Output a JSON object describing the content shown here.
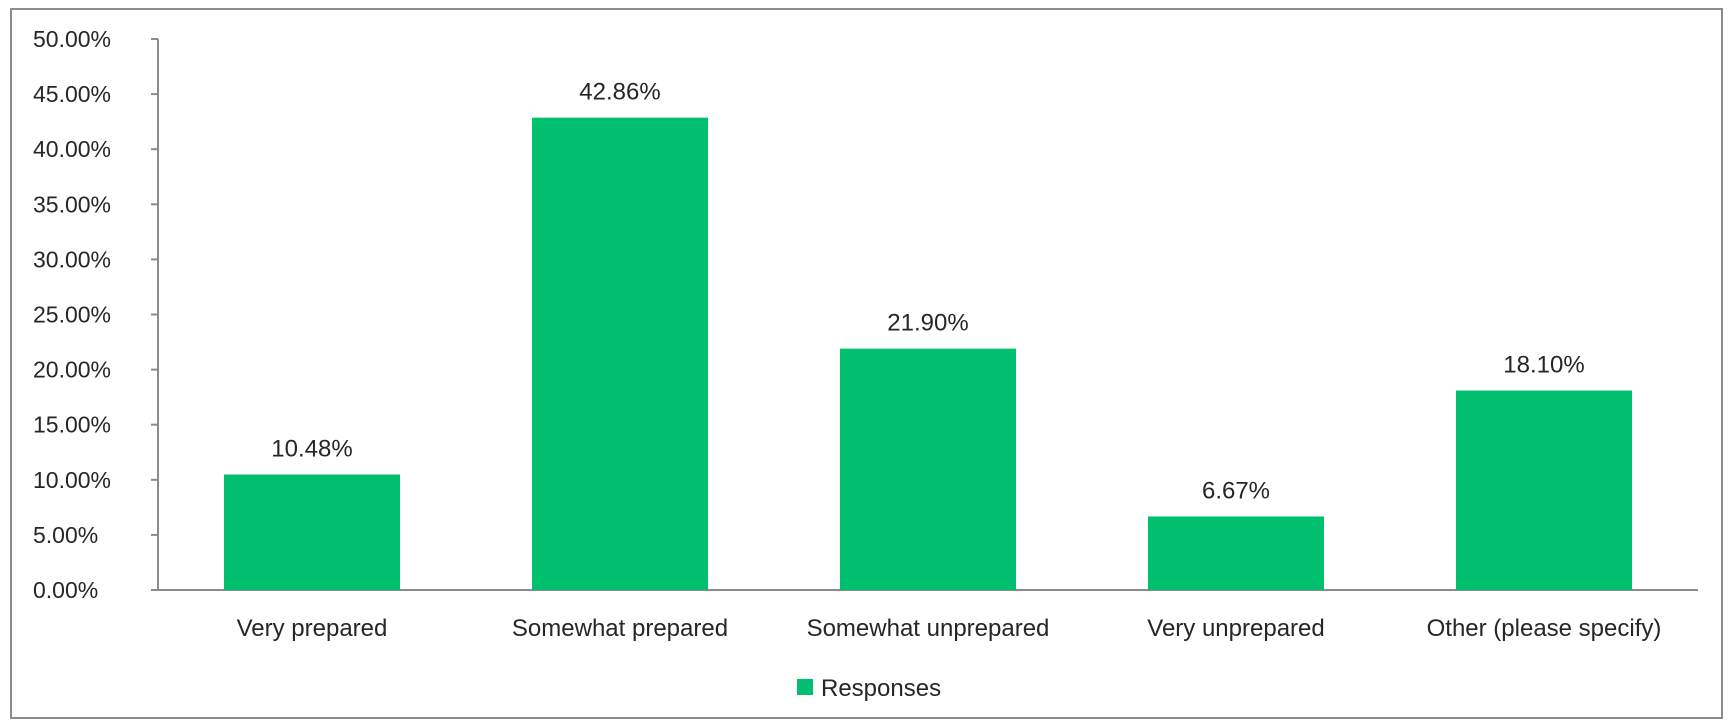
{
  "chart_data": {
    "type": "bar",
    "categories": [
      "Very prepared",
      "Somewhat prepared",
      "Somewhat unprepared",
      "Very unprepared",
      "Other (please specify)"
    ],
    "series": [
      {
        "name": "Responses",
        "values": [
          10.48,
          42.86,
          21.9,
          6.67,
          18.1
        ],
        "labels": [
          "10.48%",
          "42.86%",
          "21.90%",
          "6.67%",
          "18.10%"
        ],
        "color": "#00BF6F"
      }
    ],
    "yticks": [
      "0.00%",
      "5.00%",
      "10.00%",
      "15.00%",
      "20.00%",
      "25.00%",
      "30.00%",
      "35.00%",
      "40.00%",
      "45.00%",
      "50.00%"
    ],
    "ylim": [
      0,
      50
    ],
    "grid": false,
    "legend": {
      "position": "bottom",
      "label": "Responses"
    },
    "axis_color": "#8c8c8c"
  }
}
